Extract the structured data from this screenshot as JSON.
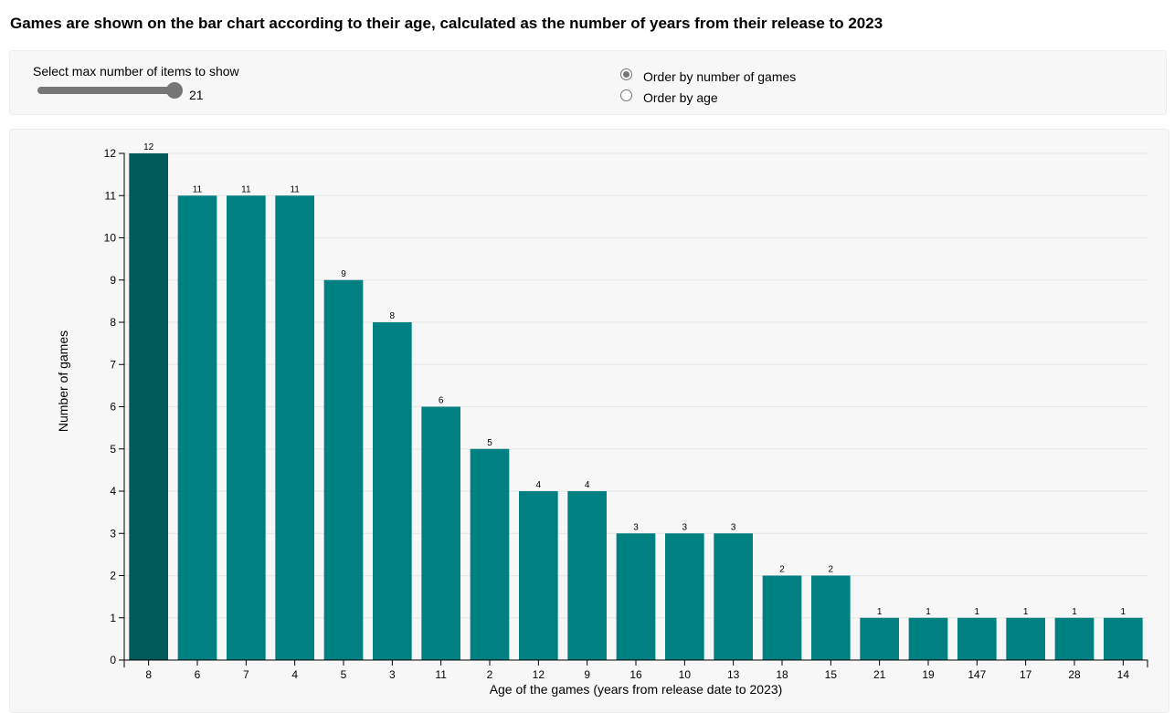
{
  "title": "Games are shown on the bar chart according to their age, calculated as the number of years from their release to 2023",
  "controls": {
    "slider_label": "Select max number of items to show",
    "slider_value": "21",
    "slider_min": 1,
    "slider_max": 21,
    "radio_number_label": "Order by number of games",
    "radio_age_label": "Order by age",
    "selected_order": "number"
  },
  "colors": {
    "bar": "#008080",
    "bar_highlight": "#005a5a",
    "grid": "#e6e6e6",
    "axis": "#000000",
    "panel_background": "#f7f7f7"
  },
  "chart_data": {
    "type": "bar",
    "title": "",
    "xlabel": "Age of the games (years from release date to 2023)",
    "ylabel": "Number of games",
    "ylim": [
      0,
      12
    ],
    "yticks": [
      0,
      1,
      2,
      3,
      4,
      5,
      6,
      7,
      8,
      9,
      10,
      11,
      12
    ],
    "grid": true,
    "categories": [
      "8",
      "6",
      "7",
      "4",
      "5",
      "3",
      "11",
      "2",
      "12",
      "9",
      "16",
      "10",
      "13",
      "18",
      "15",
      "21",
      "19",
      "147",
      "17",
      "28",
      "14"
    ],
    "values": [
      12,
      11,
      11,
      11,
      9,
      8,
      6,
      5,
      4,
      4,
      3,
      3,
      3,
      2,
      2,
      1,
      1,
      1,
      1,
      1,
      1
    ],
    "highlighted_index": 0
  }
}
